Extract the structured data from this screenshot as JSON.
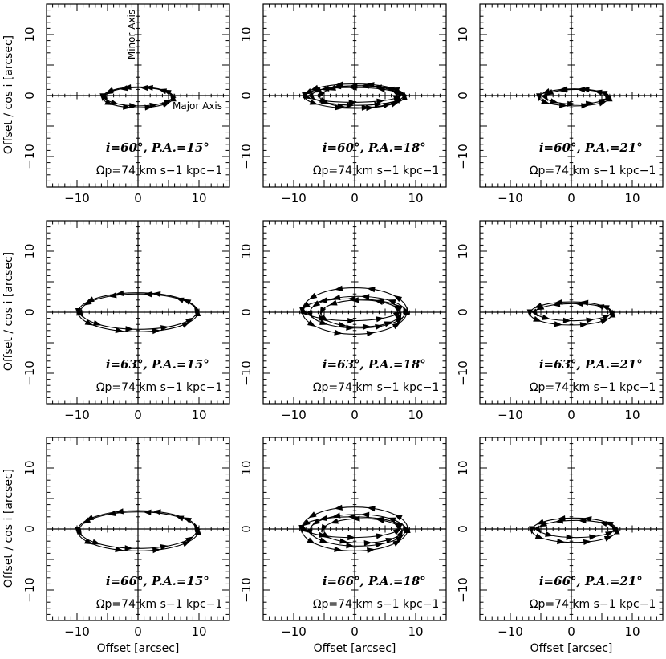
{
  "figure": {
    "xlabel": "Offset [arcsec]",
    "ylabel": "Offset / cos i [arcsec]",
    "major_axis_label": "Major Axis",
    "minor_axis_label": "Minor Axis",
    "xlim": [
      -15,
      15
    ],
    "ylim": [
      -15,
      15
    ],
    "ticks": [
      -10,
      0,
      10
    ],
    "tick_labels": [
      "−10",
      "0",
      "10"
    ]
  },
  "chart_data": [
    {
      "type": "scatter",
      "inclination_deg": 60,
      "pa_deg": 15,
      "pattern_speed": "74",
      "label_line1": "i=60°, P.A.=15°",
      "label_line2": "Ωp=74 km s−1 kpc−1",
      "rings": [
        {
          "cx": 0,
          "cy": -0.3,
          "a": 5.8,
          "b": 1.7
        },
        {
          "cx": 0.1,
          "cy": -0.2,
          "a": 5.5,
          "b": 1.5
        }
      ],
      "xlim": [
        -15,
        15
      ],
      "ylim": [
        -15,
        15
      ]
    },
    {
      "type": "scatter",
      "inclination_deg": 60,
      "pa_deg": 18,
      "pattern_speed": "74",
      "label_line1": "i=60°, P.A.=18°",
      "label_line2": "Ωp=74 km s−1 kpc−1",
      "rings": [
        {
          "cx": 0,
          "cy": -0.1,
          "a": 8.2,
          "b": 2.0
        },
        {
          "cx": 0.5,
          "cy": 0,
          "a": 7.5,
          "b": 1.6
        },
        {
          "cx": -0.3,
          "cy": 0.1,
          "a": 7.8,
          "b": 1.2
        },
        {
          "cx": 0.8,
          "cy": -0.2,
          "a": 6.5,
          "b": 1.8
        }
      ],
      "xlim": [
        -15,
        15
      ],
      "ylim": [
        -15,
        15
      ]
    },
    {
      "type": "scatter",
      "inclination_deg": 60,
      "pa_deg": 21,
      "pattern_speed": "74",
      "label_line1": "i=60°, P.A.=21°",
      "label_line2": "Ωp=74 km s−1 kpc−1",
      "rings": [
        {
          "cx": 0.5,
          "cy": -0.3,
          "a": 5.8,
          "b": 1.4
        },
        {
          "cx": 0.8,
          "cy": -0.2,
          "a": 5.0,
          "b": 1.2
        }
      ],
      "xlim": [
        -15,
        15
      ],
      "ylim": [
        -15,
        15
      ]
    },
    {
      "type": "scatter",
      "inclination_deg": 63,
      "pa_deg": 15,
      "pattern_speed": "74",
      "label_line1": "i=63°, P.A.=15°",
      "label_line2": "Ωp=74 km s−1 kpc−1",
      "rings": [
        {
          "cx": 0,
          "cy": 0,
          "a": 9.8,
          "b": 3.2
        },
        {
          "cx": 0.1,
          "cy": 0.1,
          "a": 9.5,
          "b": 2.9
        }
      ],
      "xlim": [
        -15,
        15
      ],
      "ylim": [
        -15,
        15
      ]
    },
    {
      "type": "scatter",
      "inclination_deg": 63,
      "pa_deg": 18,
      "pattern_speed": "74",
      "label_line1": "i=63°, P.A.=18°",
      "label_line2": "Ωp=74 km s−1 kpc−1",
      "rings": [
        {
          "cx": 0,
          "cy": 0.2,
          "a": 8.6,
          "b": 3.8
        },
        {
          "cx": 0.5,
          "cy": 0,
          "a": 7.8,
          "b": 2.6
        },
        {
          "cx": -0.5,
          "cy": 0.4,
          "a": 8.0,
          "b": 1.8
        },
        {
          "cx": 1.0,
          "cy": -0.2,
          "a": 6.5,
          "b": 2.2
        }
      ],
      "xlim": [
        -15,
        15
      ],
      "ylim": [
        -15,
        15
      ]
    },
    {
      "type": "scatter",
      "inclination_deg": 63,
      "pa_deg": 21,
      "pattern_speed": "74",
      "label_line1": "i=63°, P.A.=21°",
      "label_line2": "Ωp=74 km s−1 kpc−1",
      "rings": [
        {
          "cx": 0,
          "cy": -0.2,
          "a": 6.8,
          "b": 1.9
        },
        {
          "cx": 0.3,
          "cy": 0,
          "a": 6.2,
          "b": 1.4
        }
      ],
      "xlim": [
        -15,
        15
      ],
      "ylim": [
        -15,
        15
      ]
    },
    {
      "type": "scatter",
      "inclination_deg": 66,
      "pa_deg": 15,
      "pattern_speed": "74",
      "label_line1": "i=66°, P.A.=15°",
      "label_line2": "Ωp=74 km s−1 kpc−1",
      "rings": [
        {
          "cx": 0,
          "cy": -0.3,
          "a": 9.9,
          "b": 3.3
        },
        {
          "cx": 0,
          "cy": -0.2,
          "a": 9.6,
          "b": 3.0
        }
      ],
      "xlim": [
        -15,
        15
      ],
      "ylim": [
        -15,
        15
      ]
    },
    {
      "type": "scatter",
      "inclination_deg": 66,
      "pa_deg": 18,
      "pattern_speed": "74",
      "label_line1": "i=66°, P.A.=18°",
      "label_line2": "Ωp=74 km s−1 kpc−1",
      "rings": [
        {
          "cx": 0,
          "cy": 0,
          "a": 8.7,
          "b": 3.6
        },
        {
          "cx": 0.5,
          "cy": -0.2,
          "a": 7.8,
          "b": 2.6
        },
        {
          "cx": -0.5,
          "cy": 0.3,
          "a": 8.0,
          "b": 1.7
        },
        {
          "cx": 1.2,
          "cy": -0.3,
          "a": 6.5,
          "b": 2.0
        }
      ],
      "xlim": [
        -15,
        15
      ],
      "ylim": [
        -15,
        15
      ]
    },
    {
      "type": "scatter",
      "inclination_deg": 66,
      "pa_deg": 21,
      "pattern_speed": "74",
      "label_line1": "i=66°, P.A.=21°",
      "label_line2": "Ωp=74 km s−1 kpc−1",
      "rings": [
        {
          "cx": 0.5,
          "cy": -0.2,
          "a": 7.0,
          "b": 2.0
        },
        {
          "cx": 0.8,
          "cy": 0,
          "a": 6.2,
          "b": 1.4
        }
      ],
      "xlim": [
        -15,
        15
      ],
      "ylim": [
        -15,
        15
      ]
    }
  ]
}
